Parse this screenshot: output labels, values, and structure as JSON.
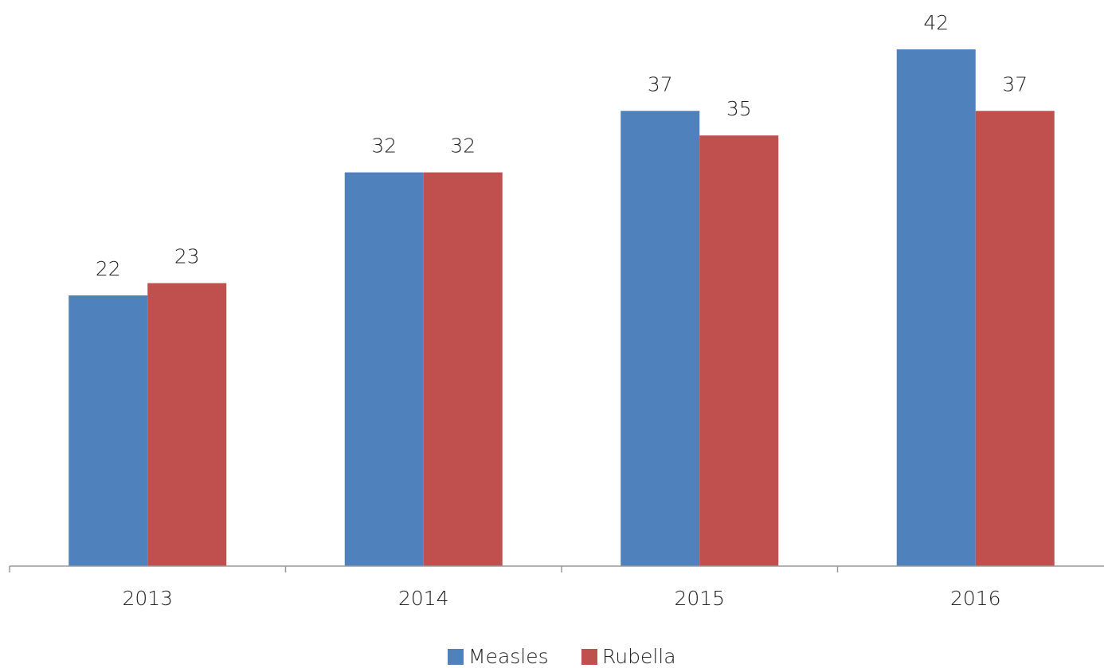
{
  "chart_data": {
    "type": "bar",
    "categories": [
      "2013",
      "2014",
      "2015",
      "2016"
    ],
    "series": [
      {
        "name": "Measles",
        "color": "#4f81bd",
        "values": [
          22,
          32,
          37,
          42
        ]
      },
      {
        "name": "Rubella",
        "color": "#c0504d",
        "values": [
          23,
          32,
          35,
          37
        ]
      }
    ],
    "legend": "bottom"
  }
}
